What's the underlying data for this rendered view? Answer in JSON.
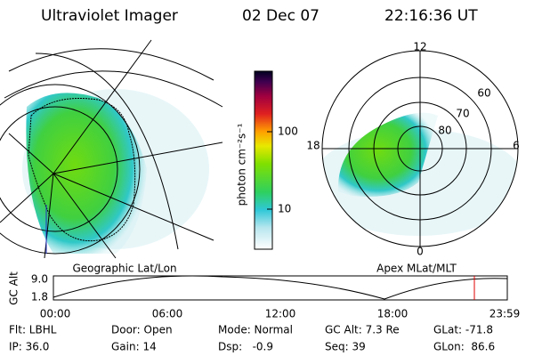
{
  "header": {
    "title": "Ultraviolet Imager",
    "date": "02 Dec 07",
    "time": "22:16:36 UT"
  },
  "colorbar": {
    "label": "photon cm⁻²s⁻¹",
    "ticks": [
      "100",
      "10"
    ]
  },
  "left_panel": {
    "caption": "Geographic Lat/Lon"
  },
  "right_panel": {
    "caption": "Apex MLat/MLT",
    "mlt_labels": [
      "12",
      "18",
      "6",
      "0"
    ],
    "lat_labels": [
      "60",
      "70",
      "80"
    ]
  },
  "altitude": {
    "axis_label": "GC Alt",
    "y_labels": [
      "9.0",
      "1.8"
    ],
    "x_labels": [
      "00:00",
      "06:00",
      "12:00",
      "18:00",
      "23:59"
    ]
  },
  "info": {
    "rows": [
      [
        "Flt: LBHL",
        "Door: Open",
        "Mode: Normal",
        "GC Alt: 7.3 Re",
        "GLat: -71.8"
      ],
      [
        "IP: 36.0",
        "Gain: 14",
        "Dsp:   -0.9",
        "Seq: 39",
        "GLon:  86.6"
      ]
    ]
  }
}
